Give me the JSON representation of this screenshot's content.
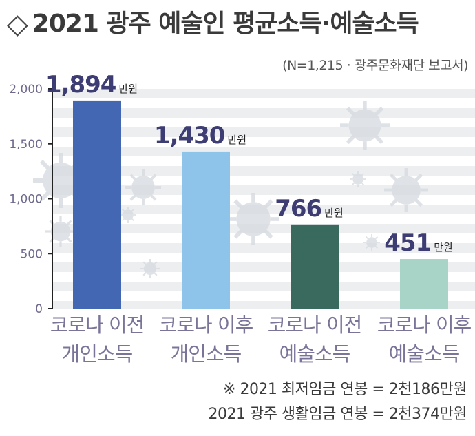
{
  "title": {
    "icon": "diamond-outline-icon",
    "text": "2021 광주 예술인 평균소득·예술소득"
  },
  "source": "(N=1,215 · 광주문화재단 보고서)",
  "chart_data": {
    "type": "bar",
    "categories": [
      [
        "코로나 이전",
        "개인소득"
      ],
      [
        "코로나 이후",
        "개인소득"
      ],
      [
        "코로나 이전",
        "예술소득"
      ],
      [
        "코로나 이후",
        "예술소득"
      ]
    ],
    "values": [
      1894,
      1430,
      766,
      451
    ],
    "value_labels": [
      "1,894",
      "1,430",
      "766",
      "451"
    ],
    "unit": "만원",
    "yticks": [
      0,
      500,
      1000,
      1500,
      2000
    ],
    "ytick_labels": [
      "0",
      "500",
      "1,000",
      "1,500",
      "2,000"
    ],
    "ylim": [
      0,
      2000
    ],
    "grid": "horizontal stripes",
    "colors": [
      "#4467b4",
      "#8ec4e9",
      "#3a6a5e",
      "#a7d4c6"
    ],
    "value_label_color": "#3d3d73",
    "category_label_color": "#7a7499"
  },
  "notes": [
    "※ 2021 최저임금 연봉 = 2천186만원",
    "2021 광주 생활임금 연봉 = 2천374만원"
  ]
}
